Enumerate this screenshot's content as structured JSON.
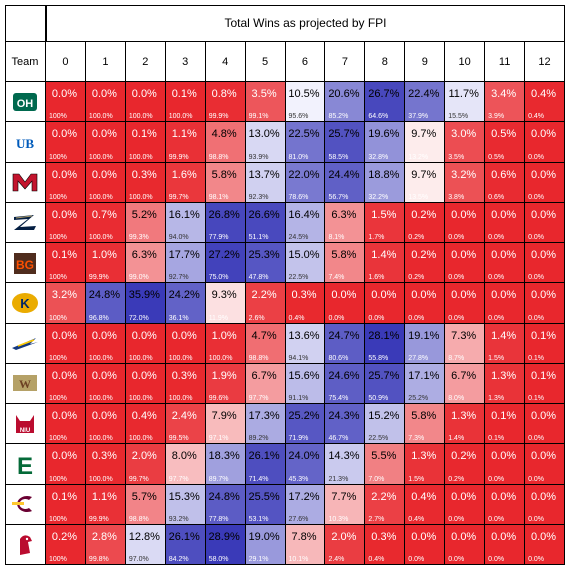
{
  "chart_data": {
    "type": "table",
    "title": "Total Wins as projected by FPI",
    "team_header": "Team",
    "columns": [
      "0",
      "1",
      "2",
      "3",
      "4",
      "5",
      "6",
      "7",
      "8",
      "9",
      "10",
      "11",
      "12"
    ],
    "rows": [
      {
        "team": "Ohio",
        "logo": "ohio-logo",
        "color": "#00694E",
        "text": "OH",
        "values": [
          "0.0%",
          "0.0%",
          "0.0%",
          "0.1%",
          "0.8%",
          "3.5%",
          "10.5%",
          "20.6%",
          "26.7%",
          "22.4%",
          "11.7%",
          "3.4%",
          "0.4%"
        ],
        "cumulative": [
          "100%",
          "100.0%",
          "100.0%",
          "100.0%",
          "99.9%",
          "99.1%",
          "95.6%",
          "85.2%",
          "64.6%",
          "37.9%",
          "15.5%",
          "3.9%",
          "0.4%"
        ]
      },
      {
        "team": "Buffalo",
        "logo": "buffalo-logo",
        "color": "#005BBB",
        "text": "UB",
        "values": [
          "0.0%",
          "0.0%",
          "0.1%",
          "1.1%",
          "4.8%",
          "13.0%",
          "22.5%",
          "25.7%",
          "19.6%",
          "9.7%",
          "3.0%",
          "0.5%",
          "0.0%"
        ],
        "cumulative": [
          "100%",
          "100.0%",
          "100.0%",
          "99.9%",
          "98.8%",
          "93.9%",
          "81.0%",
          "58.5%",
          "32.8%",
          "13.2%",
          "3.5%",
          "0.5%",
          "0.0%"
        ]
      },
      {
        "team": "Miami (OH)",
        "logo": "miami-logo",
        "color": "#C3142D",
        "text": "M",
        "values": [
          "0.0%",
          "0.0%",
          "0.3%",
          "1.6%",
          "5.8%",
          "13.7%",
          "22.0%",
          "24.4%",
          "18.8%",
          "9.7%",
          "3.2%",
          "0.6%",
          "0.0%"
        ],
        "cumulative": [
          "100%",
          "100.0%",
          "100.0%",
          "99.7%",
          "98.1%",
          "92.3%",
          "78.6%",
          "56.7%",
          "32.2%",
          "13.5%",
          "3.8%",
          "0.6%",
          "0.0%"
        ]
      },
      {
        "team": "Akron",
        "logo": "akron-logo",
        "color": "#041E42",
        "text": "Z",
        "values": [
          "0.0%",
          "0.7%",
          "5.2%",
          "16.1%",
          "26.8%",
          "26.6%",
          "16.4%",
          "6.3%",
          "1.5%",
          "0.2%",
          "0.0%",
          "0.0%",
          "0.0%"
        ],
        "cumulative": [
          "100%",
          "100.0%",
          "99.3%",
          "94.0%",
          "77.9%",
          "51.1%",
          "24.5%",
          "8.1%",
          "1.7%",
          "0.2%",
          "0.0%",
          "0.0%",
          "0.0%"
        ]
      },
      {
        "team": "Bowling Green",
        "logo": "bowling-green-logo",
        "color": "#FE5000",
        "text": "BG",
        "values": [
          "0.1%",
          "1.0%",
          "6.3%",
          "17.7%",
          "27.2%",
          "25.3%",
          "15.0%",
          "5.8%",
          "1.4%",
          "0.2%",
          "0.0%",
          "0.0%",
          "0.0%"
        ],
        "cumulative": [
          "100%",
          "99.9%",
          "99.0%",
          "92.7%",
          "75.0%",
          "47.8%",
          "22.5%",
          "7.4%",
          "1.6%",
          "0.2%",
          "0.0%",
          "0.0%",
          "0.0%"
        ]
      },
      {
        "team": "Kent State",
        "logo": "kent-state-logo",
        "color": "#002664",
        "text": "K",
        "values": [
          "3.2%",
          "24.8%",
          "35.9%",
          "24.2%",
          "9.3%",
          "2.2%",
          "0.3%",
          "0.0%",
          "0.0%",
          "0.0%",
          "0.0%",
          "0.0%",
          "0.0%"
        ],
        "cumulative": [
          "100%",
          "96.8%",
          "72.0%",
          "36.1%",
          "11.9%",
          "2.6%",
          "0.4%",
          "0.0%",
          "0.0%",
          "0.0%",
          "0.0%",
          "0.0%",
          "0.0%"
        ]
      },
      {
        "team": "Toledo",
        "logo": "toledo-logo",
        "color": "#15397F",
        "text": "",
        "values": [
          "0.0%",
          "0.0%",
          "0.0%",
          "0.0%",
          "1.0%",
          "4.7%",
          "13.6%",
          "24.7%",
          "28.1%",
          "19.1%",
          "7.3%",
          "1.4%",
          "0.1%"
        ],
        "cumulative": [
          "100%",
          "100.0%",
          "100.0%",
          "100.0%",
          "100.0%",
          "98.8%",
          "94.1%",
          "80.6%",
          "55.8%",
          "27.8%",
          "8.7%",
          "1.5%",
          "0.1%"
        ]
      },
      {
        "team": "Western Michigan",
        "logo": "western-michigan-logo",
        "color": "#6C4023",
        "text": "W",
        "values": [
          "0.0%",
          "0.0%",
          "0.0%",
          "0.3%",
          "1.9%",
          "6.7%",
          "15.6%",
          "24.6%",
          "25.7%",
          "17.1%",
          "6.7%",
          "1.3%",
          "0.1%"
        ],
        "cumulative": [
          "100%",
          "100.0%",
          "100.0%",
          "100.0%",
          "99.6%",
          "97.7%",
          "91.1%",
          "75.4%",
          "50.9%",
          "25.2%",
          "8.0%",
          "1.3%",
          "0.1%"
        ]
      },
      {
        "team": "Northern Illinois",
        "logo": "northern-illinois-logo",
        "color": "#BA0C2F",
        "text": "NIU",
        "values": [
          "0.0%",
          "0.0%",
          "0.4%",
          "2.4%",
          "7.9%",
          "17.3%",
          "25.2%",
          "24.3%",
          "15.2%",
          "5.8%",
          "1.3%",
          "0.1%",
          "0.0%"
        ],
        "cumulative": [
          "100%",
          "100.0%",
          "100.0%",
          "99.5%",
          "97.1%",
          "89.2%",
          "71.9%",
          "46.7%",
          "22.5%",
          "7.3%",
          "1.4%",
          "0.1%",
          "0.0%"
        ]
      },
      {
        "team": "Eastern Michigan",
        "logo": "eastern-michigan-logo",
        "color": "#046A38",
        "text": "E",
        "values": [
          "0.0%",
          "0.3%",
          "2.0%",
          "8.0%",
          "18.3%",
          "26.1%",
          "24.0%",
          "14.3%",
          "5.5%",
          "1.3%",
          "0.2%",
          "0.0%",
          "0.0%"
        ],
        "cumulative": [
          "100%",
          "100.0%",
          "99.7%",
          "97.7%",
          "89.7%",
          "71.4%",
          "45.3%",
          "21.3%",
          "7.0%",
          "1.5%",
          "0.2%",
          "0.0%",
          "0.0%"
        ]
      },
      {
        "team": "Central Michigan",
        "logo": "central-michigan-logo",
        "color": "#6A0032",
        "text": "C",
        "values": [
          "0.1%",
          "1.1%",
          "5.7%",
          "15.3%",
          "24.8%",
          "25.5%",
          "17.2%",
          "7.7%",
          "2.2%",
          "0.4%",
          "0.0%",
          "0.0%",
          "0.0%"
        ],
        "cumulative": [
          "100%",
          "99.9%",
          "98.8%",
          "93.2%",
          "77.8%",
          "53.1%",
          "27.6%",
          "10.3%",
          "2.7%",
          "0.4%",
          "0.0%",
          "0.0%",
          "0.0%"
        ]
      },
      {
        "team": "Ball State",
        "logo": "ball-state-logo",
        "color": "#BA0C2F",
        "text": "",
        "values": [
          "0.2%",
          "2.8%",
          "12.8%",
          "26.1%",
          "28.9%",
          "19.0%",
          "7.8%",
          "2.0%",
          "0.3%",
          "0.0%",
          "0.0%",
          "0.0%",
          "0.0%"
        ],
        "cumulative": [
          "100%",
          "99.8%",
          "97.0%",
          "84.2%",
          "58.0%",
          "29.1%",
          "10.1%",
          "2.4%",
          "0.4%",
          "0.0%",
          "0.0%",
          "0.0%",
          "0.0%"
        ]
      }
    ],
    "colors": {
      "low": "#E8272D",
      "high": "#3A3AB8",
      "mid": "#FFFFFF"
    }
  }
}
